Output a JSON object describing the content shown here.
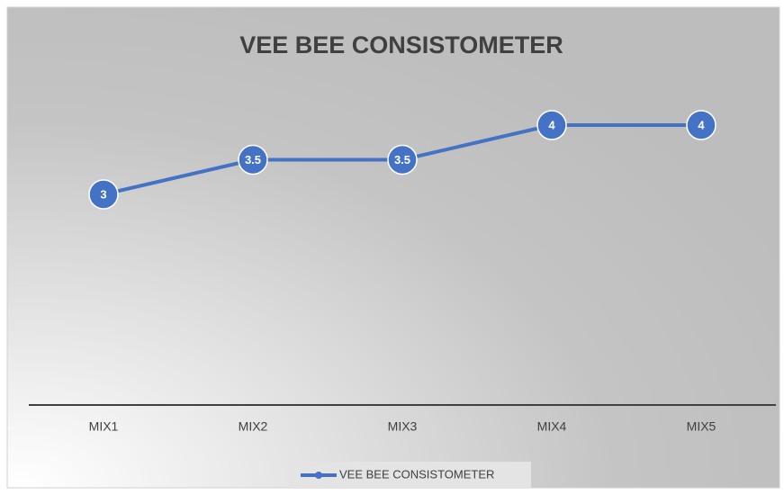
{
  "chart_data": {
    "type": "line",
    "title": "VEE BEE CONSISTOMETER",
    "categories": [
      "MIX1",
      "MIX2",
      "MIX3",
      "MIX4",
      "MIX5"
    ],
    "series": [
      {
        "name": "VEE BEE CONSISTOMETER",
        "color": "#4472c4",
        "values": [
          3,
          3.5,
          3.5,
          4,
          4
        ]
      }
    ],
    "ylim": [
      0,
      5
    ],
    "legend": "bottom"
  }
}
